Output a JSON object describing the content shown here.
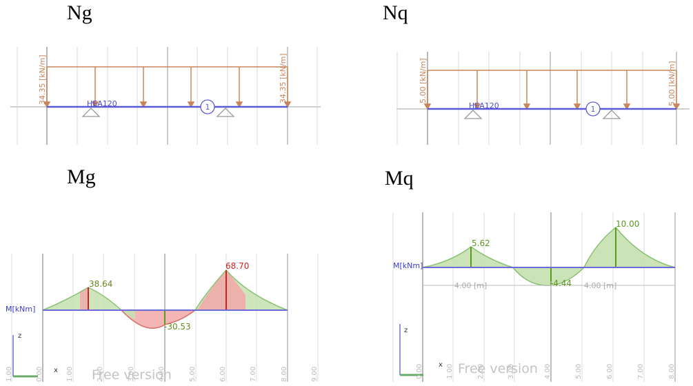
{
  "panels": {
    "ng": {
      "title": "Ng",
      "section": "HEA120",
      "load_left": "34.35 [kN/m]",
      "load_right": "34.35 [kN/m]",
      "member_id": "1"
    },
    "nq": {
      "title": "Nq",
      "section": "HEA120",
      "load_left": "5.00 [kN/m]",
      "load_right": "5.00 [kN/m]",
      "member_id": "1"
    },
    "mg": {
      "title": "Mg",
      "axis_label": "M[kNm]",
      "peak_left": "38.64",
      "mid_value": "-30.53",
      "peak_right": "68.70",
      "z_label": "z",
      "x_label": "x",
      "watermark": "Free version",
      "ticks": [
        "1.00",
        "0.00",
        "1.00",
        "2.00",
        "3.00",
        "4.00",
        "5.00",
        "6.00",
        "7.00",
        "8.00",
        "9.00"
      ]
    },
    "mq": {
      "title": "Mq",
      "axis_label": "M[kNm]",
      "peak_left": "5.62",
      "mid_value": "-4.44",
      "peak_right": "10.00",
      "span_left": "4.00 [m]",
      "span_right": "4.00 [m]",
      "z_label": "z",
      "x_label": "x",
      "watermark": "Free version",
      "ticks": [
        "0.00",
        "1.00",
        "2.00",
        "3.00",
        "4.00",
        "5.00",
        "6.00",
        "7.00",
        "8.00"
      ]
    }
  },
  "colors": {
    "load": "#c8855a",
    "beam": "#5a5ad8",
    "grid": "#d8d8d8",
    "positive_fill": "#c7e0b0",
    "positive_line": "#88c070",
    "negative_fill": "#f2a8a8",
    "negative_line": "#e06060",
    "value_green": "#5a9a20",
    "value_red": "#d02020",
    "support": "#999999"
  }
}
